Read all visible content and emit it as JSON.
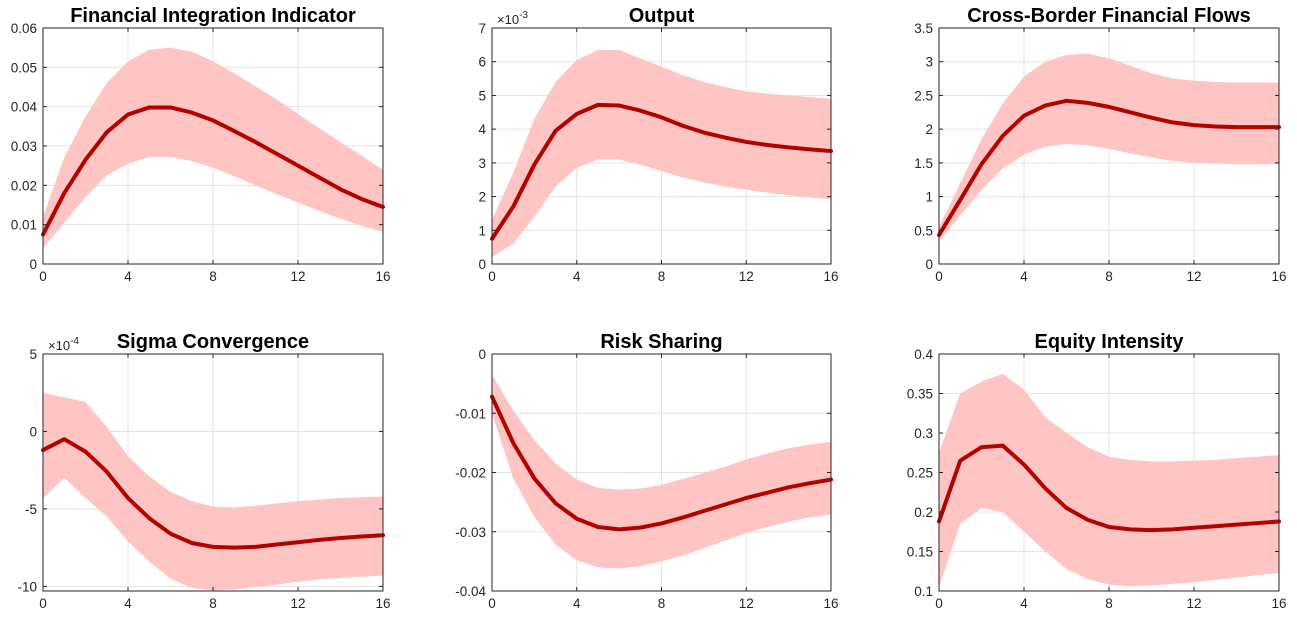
{
  "chart_data": [
    {
      "type": "area",
      "title": "Financial Integration Indicator",
      "exponent_label": "",
      "xlim": [
        0,
        16
      ],
      "ylim": [
        0,
        0.06
      ],
      "xticks": [
        "0",
        "4",
        "8",
        "12",
        "16"
      ],
      "yticks": [
        {
          "v": 0,
          "label": "0"
        },
        {
          "v": 0.01,
          "label": "0.01"
        },
        {
          "v": 0.02,
          "label": "0.02"
        },
        {
          "v": 0.03,
          "label": "0.03"
        },
        {
          "v": 0.04,
          "label": "0.04"
        },
        {
          "v": 0.05,
          "label": "0.05"
        },
        {
          "v": 0.06,
          "label": "0.06"
        }
      ],
      "x": [
        0,
        1,
        2,
        3,
        4,
        5,
        6,
        7,
        8,
        9,
        10,
        11,
        12,
        13,
        14,
        15,
        16
      ],
      "median": [
        0.0075,
        0.018,
        0.0265,
        0.0335,
        0.038,
        0.0398,
        0.0398,
        0.0385,
        0.0365,
        0.0338,
        0.031,
        0.028,
        0.025,
        0.022,
        0.019,
        0.0165,
        0.0145
      ],
      "lower": [
        0.004,
        0.0105,
        0.017,
        0.0225,
        0.0255,
        0.0272,
        0.0272,
        0.0262,
        0.0245,
        0.0223,
        0.02,
        0.0178,
        0.0156,
        0.0135,
        0.0115,
        0.0097,
        0.0082
      ],
      "upper": [
        0.012,
        0.027,
        0.0375,
        0.046,
        0.0515,
        0.0545,
        0.055,
        0.054,
        0.0515,
        0.0485,
        0.0452,
        0.0418,
        0.0382,
        0.0345,
        0.031,
        0.0275,
        0.024
      ]
    },
    {
      "type": "area",
      "title": "Output",
      "exponent_label": "×10",
      "exponent": "-3",
      "xlim": [
        0,
        16
      ],
      "ylim": [
        0,
        7
      ],
      "xticks": [
        "0",
        "4",
        "8",
        "12",
        "16"
      ],
      "yticks": [
        {
          "v": 0,
          "label": "0"
        },
        {
          "v": 1,
          "label": "1"
        },
        {
          "v": 2,
          "label": "2"
        },
        {
          "v": 3,
          "label": "3"
        },
        {
          "v": 4,
          "label": "4"
        },
        {
          "v": 5,
          "label": "5"
        },
        {
          "v": 6,
          "label": "6"
        },
        {
          "v": 7,
          "label": "7"
        }
      ],
      "x": [
        0,
        1,
        2,
        3,
        4,
        5,
        6,
        7,
        8,
        9,
        10,
        11,
        12,
        13,
        14,
        15,
        16
      ],
      "median": [
        0.75,
        1.7,
        2.95,
        3.95,
        4.45,
        4.72,
        4.7,
        4.55,
        4.35,
        4.1,
        3.9,
        3.75,
        3.62,
        3.53,
        3.46,
        3.4,
        3.35
      ],
      "lower": [
        0.2,
        0.6,
        1.4,
        2.3,
        2.85,
        3.1,
        3.1,
        2.95,
        2.75,
        2.57,
        2.42,
        2.3,
        2.2,
        2.12,
        2.04,
        1.97,
        1.92
      ],
      "upper": [
        1.3,
        2.7,
        4.3,
        5.4,
        6.05,
        6.35,
        6.35,
        6.1,
        5.85,
        5.6,
        5.4,
        5.25,
        5.12,
        5.05,
        5.0,
        4.95,
        4.9
      ]
    },
    {
      "type": "area",
      "title": "Cross-Border Financial Flows",
      "exponent_label": "",
      "xlim": [
        0,
        16
      ],
      "ylim": [
        0,
        3.5
      ],
      "xticks": [
        "0",
        "4",
        "8",
        "12",
        "16"
      ],
      "yticks": [
        {
          "v": 0,
          "label": "0"
        },
        {
          "v": 0.5,
          "label": "0.5"
        },
        {
          "v": 1,
          "label": "1"
        },
        {
          "v": 1.5,
          "label": "1.5"
        },
        {
          "v": 2,
          "label": "2"
        },
        {
          "v": 2.5,
          "label": "2.5"
        },
        {
          "v": 3,
          "label": "3"
        },
        {
          "v": 3.5,
          "label": "3.5"
        }
      ],
      "x": [
        0,
        1,
        2,
        3,
        4,
        5,
        6,
        7,
        8,
        9,
        10,
        11,
        12,
        13,
        14,
        15,
        16
      ],
      "median": [
        0.43,
        0.95,
        1.48,
        1.9,
        2.2,
        2.35,
        2.42,
        2.39,
        2.33,
        2.25,
        2.17,
        2.1,
        2.06,
        2.04,
        2.03,
        2.03,
        2.03
      ],
      "lower": [
        0.33,
        0.72,
        1.1,
        1.42,
        1.62,
        1.74,
        1.78,
        1.76,
        1.71,
        1.64,
        1.58,
        1.53,
        1.5,
        1.49,
        1.48,
        1.48,
        1.48
      ],
      "upper": [
        0.55,
        1.2,
        1.85,
        2.38,
        2.78,
        3.0,
        3.1,
        3.12,
        3.05,
        2.94,
        2.83,
        2.75,
        2.72,
        2.7,
        2.69,
        2.69,
        2.69
      ]
    },
    {
      "type": "area",
      "title": "Sigma Convergence",
      "exponent_label": "×10",
      "exponent": "-4",
      "xlim": [
        0,
        16
      ],
      "ylim": [
        -10.3,
        5
      ],
      "xticks": [
        "0",
        "4",
        "8",
        "12",
        "16"
      ],
      "yticks": [
        {
          "v": -10,
          "label": "-10"
        },
        {
          "v": -5,
          "label": "-5"
        },
        {
          "v": 0,
          "label": "0"
        },
        {
          "v": 5,
          "label": "5"
        }
      ],
      "x": [
        0,
        1,
        2,
        3,
        4,
        5,
        6,
        7,
        8,
        9,
        10,
        11,
        12,
        13,
        14,
        15,
        16
      ],
      "median": [
        -1.2,
        -0.5,
        -1.3,
        -2.6,
        -4.3,
        -5.6,
        -6.6,
        -7.2,
        -7.45,
        -7.5,
        -7.45,
        -7.3,
        -7.15,
        -7.0,
        -6.88,
        -6.78,
        -6.7
      ],
      "lower": [
        -4.3,
        -3.0,
        -4.3,
        -5.5,
        -7.1,
        -8.4,
        -9.5,
        -10.1,
        -10.25,
        -10.2,
        -10.05,
        -9.9,
        -9.7,
        -9.55,
        -9.45,
        -9.38,
        -9.3
      ],
      "upper": [
        2.5,
        2.2,
        1.9,
        0.3,
        -1.6,
        -2.9,
        -3.9,
        -4.5,
        -4.85,
        -4.9,
        -4.8,
        -4.65,
        -4.5,
        -4.4,
        -4.3,
        -4.25,
        -4.2
      ]
    },
    {
      "type": "area",
      "title": "Risk Sharing",
      "exponent_label": "",
      "xlim": [
        0,
        16
      ],
      "ylim": [
        -0.04,
        0
      ],
      "xticks": [
        "0",
        "4",
        "8",
        "12",
        "16"
      ],
      "yticks": [
        {
          "v": -0.04,
          "label": "-0.04"
        },
        {
          "v": -0.03,
          "label": "-0.03"
        },
        {
          "v": -0.02,
          "label": "-0.02"
        },
        {
          "v": -0.01,
          "label": "-0.01"
        },
        {
          "v": 0,
          "label": "0"
        }
      ],
      "x": [
        0,
        1,
        2,
        3,
        4,
        5,
        6,
        7,
        8,
        9,
        10,
        11,
        12,
        13,
        14,
        15,
        16
      ],
      "median": [
        -0.0072,
        -0.015,
        -0.021,
        -0.0252,
        -0.0278,
        -0.0292,
        -0.0296,
        -0.0293,
        -0.0286,
        -0.0276,
        -0.0265,
        -0.0254,
        -0.0243,
        -0.0234,
        -0.0225,
        -0.0218,
        -0.0212
      ],
      "lower": [
        -0.01,
        -0.021,
        -0.0275,
        -0.0322,
        -0.0348,
        -0.036,
        -0.0362,
        -0.0358,
        -0.035,
        -0.034,
        -0.0328,
        -0.0315,
        -0.0302,
        -0.0292,
        -0.0283,
        -0.0276,
        -0.0271
      ],
      "upper": [
        -0.0035,
        -0.0095,
        -0.0145,
        -0.0185,
        -0.0212,
        -0.0226,
        -0.0229,
        -0.0227,
        -0.0221,
        -0.0211,
        -0.0201,
        -0.019,
        -0.0178,
        -0.0168,
        -0.0159,
        -0.0153,
        -0.0148
      ]
    },
    {
      "type": "area",
      "title": "Equity Intensity",
      "exponent_label": "",
      "xlim": [
        0,
        16
      ],
      "ylim": [
        0.1,
        0.4
      ],
      "xticks": [
        "0",
        "4",
        "8",
        "12",
        "16"
      ],
      "yticks": [
        {
          "v": 0.1,
          "label": "0.1"
        },
        {
          "v": 0.15,
          "label": "0.15"
        },
        {
          "v": 0.2,
          "label": "0.2"
        },
        {
          "v": 0.25,
          "label": "0.25"
        },
        {
          "v": 0.3,
          "label": "0.3"
        },
        {
          "v": 0.35,
          "label": "0.35"
        },
        {
          "v": 0.4,
          "label": "0.4"
        }
      ],
      "x": [
        0,
        1,
        2,
        3,
        4,
        5,
        6,
        7,
        8,
        9,
        10,
        11,
        12,
        13,
        14,
        15,
        16
      ],
      "median": [
        0.188,
        0.265,
        0.282,
        0.284,
        0.26,
        0.23,
        0.205,
        0.19,
        0.181,
        0.178,
        0.177,
        0.178,
        0.18,
        0.182,
        0.184,
        0.186,
        0.188
      ],
      "lower": [
        0.105,
        0.185,
        0.205,
        0.2,
        0.175,
        0.15,
        0.128,
        0.115,
        0.108,
        0.106,
        0.107,
        0.109,
        0.111,
        0.114,
        0.117,
        0.12,
        0.123
      ],
      "upper": [
        0.275,
        0.35,
        0.365,
        0.375,
        0.355,
        0.32,
        0.3,
        0.282,
        0.27,
        0.266,
        0.264,
        0.264,
        0.265,
        0.266,
        0.268,
        0.27,
        0.272
      ]
    }
  ],
  "colors": {
    "median_line": "#b50000",
    "band_fill": "#ffc4c4",
    "axis": "#262626",
    "grid": "#e3e3e3"
  }
}
